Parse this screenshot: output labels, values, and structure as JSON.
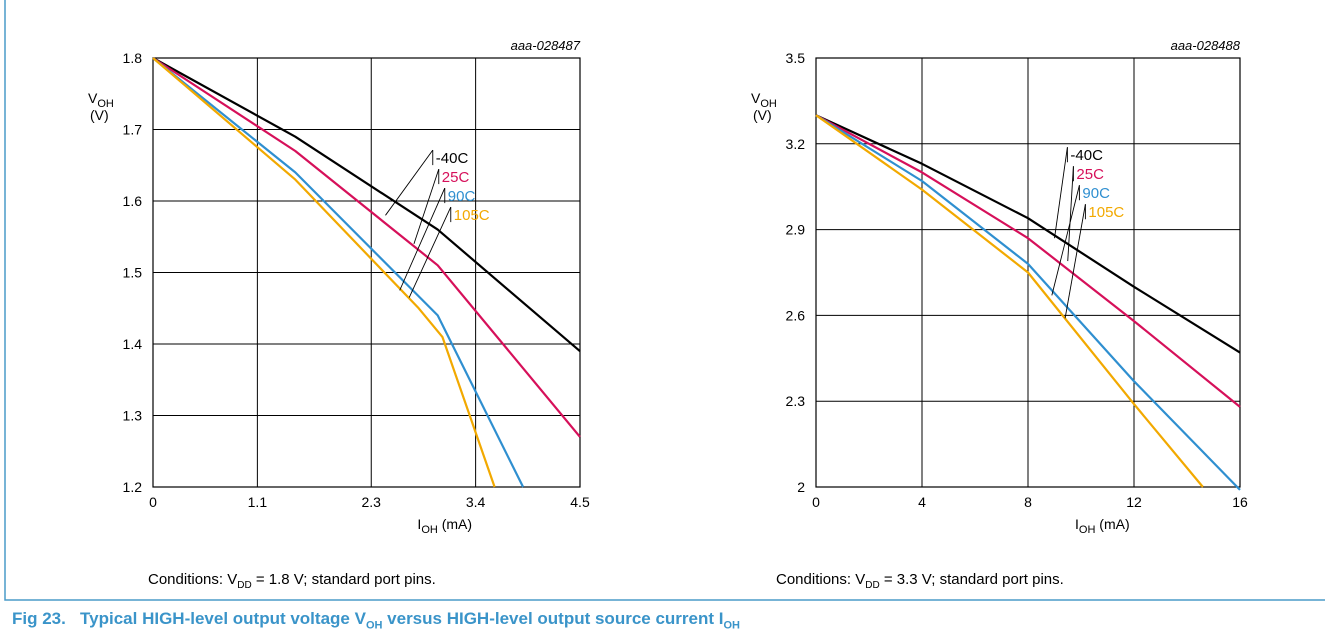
{
  "colors": {
    "frame": "#4a9cc9",
    "caption_blue": "#3a94c9",
    "grid": "#000000",
    "series": {
      "-40C": "#000000",
      "25C": "#d6105a",
      "90C": "#2f8fd0",
      "105C": "#f2a900"
    }
  },
  "figure": {
    "number": "Fig 23.",
    "title_main": "Typical HIGH-level output voltage V",
    "title_sub1": "OH",
    "title_mid": " versus HIGH-level output source current I",
    "title_sub2": "OH"
  },
  "chart_data": [
    {
      "type": "line",
      "code": "aaa-028487",
      "ylabel_main": "V",
      "ylabel_sub": "OH",
      "ylabel_unit": "(V)",
      "xlabel_main": "I",
      "xlabel_sub": "OH",
      "xlabel_unit": " (mA)",
      "xlim": [
        0,
        4.5
      ],
      "ylim": [
        1.2,
        1.8
      ],
      "xticks": [
        0,
        1.1,
        2.3,
        3.4,
        4.5
      ],
      "xtick_labels": [
        "0",
        "1.1",
        "2.3",
        "3.4",
        "4.5"
      ],
      "yticks": [
        1.2,
        1.3,
        1.4,
        1.5,
        1.6,
        1.7,
        1.8
      ],
      "ytick_labels": [
        "1.2",
        "1.3",
        "1.4",
        "1.5",
        "1.6",
        "1.7",
        "1.8"
      ],
      "grid": true,
      "conditions_prefix": "Conditions: V",
      "conditions_sub": "DD",
      "conditions_suffix": " = 1.8 V; standard port pins.",
      "series": [
        {
          "name": "-40C",
          "color": "#000000",
          "points": [
            [
              0,
              1.8
            ],
            [
              1.5,
              1.69
            ],
            [
              3.0,
              1.56
            ],
            [
              4.5,
              1.39
            ]
          ],
          "label_at": [
            2.45,
            1.58
          ]
        },
        {
          "name": "25C",
          "color": "#d6105a",
          "points": [
            [
              0,
              1.8
            ],
            [
              1.5,
              1.67
            ],
            [
              3.0,
              1.51
            ],
            [
              4.5,
              1.27
            ]
          ],
          "label_at": [
            2.75,
            1.54
          ]
        },
        {
          "name": "90C",
          "color": "#2f8fd0",
          "points": [
            [
              0,
              1.8
            ],
            [
              1.5,
              1.64
            ],
            [
              3.0,
              1.44
            ],
            [
              3.9,
              1.2
            ]
          ],
          "label_at": [
            2.6,
            1.475
          ]
        },
        {
          "name": "105C",
          "color": "#f2a900",
          "points": [
            [
              0,
              1.8
            ],
            [
              1.5,
              1.63
            ],
            [
              2.8,
              1.45
            ],
            [
              3.05,
              1.41
            ],
            [
              3.6,
              1.2
            ]
          ],
          "label_at": [
            2.7,
            1.465
          ]
        }
      ]
    },
    {
      "type": "line",
      "code": "aaa-028488",
      "ylabel_main": "V",
      "ylabel_sub": "OH",
      "ylabel_unit": "(V)",
      "xlabel_main": "I",
      "xlabel_sub": "OH",
      "xlabel_unit": " (mA)",
      "xlim": [
        0,
        16
      ],
      "ylim": [
        2.0,
        3.5
      ],
      "xticks": [
        0,
        4,
        8,
        12,
        16
      ],
      "xtick_labels": [
        "0",
        "4",
        "8",
        "12",
        "16"
      ],
      "yticks": [
        2.0,
        2.3,
        2.6,
        2.9,
        3.2,
        3.5
      ],
      "ytick_labels": [
        "2",
        "2.3",
        "2.6",
        "2.9",
        "3.2",
        "3.5"
      ],
      "grid": true,
      "conditions_prefix": "Conditions: V",
      "conditions_sub": "DD",
      "conditions_suffix": " = 3.3 V; standard port pins.",
      "series": [
        {
          "name": "-40C",
          "color": "#000000",
          "points": [
            [
              0,
              3.3
            ],
            [
              4,
              3.13
            ],
            [
              8,
              2.94
            ],
            [
              12,
              2.7
            ],
            [
              16,
              2.47
            ]
          ],
          "label_at": [
            9.0,
            2.87
          ]
        },
        {
          "name": "25C",
          "color": "#d6105a",
          "points": [
            [
              0,
              3.3
            ],
            [
              4,
              3.1
            ],
            [
              8,
              2.87
            ],
            [
              12,
              2.58
            ],
            [
              16,
              2.28
            ]
          ],
          "label_at": [
            9.5,
            2.79
          ]
        },
        {
          "name": "90C",
          "color": "#2f8fd0",
          "points": [
            [
              0,
              3.3
            ],
            [
              4,
              3.07
            ],
            [
              8,
              2.78
            ],
            [
              12,
              2.37
            ],
            [
              16,
              1.99
            ]
          ],
          "label_at": [
            8.9,
            2.67
          ]
        },
        {
          "name": "105C",
          "color": "#f2a900",
          "points": [
            [
              0,
              3.3
            ],
            [
              4,
              3.04
            ],
            [
              8,
              2.75
            ],
            [
              12,
              2.29
            ],
            [
              14.6,
              2.0
            ]
          ],
          "label_at": [
            9.4,
            2.59
          ]
        }
      ]
    }
  ]
}
